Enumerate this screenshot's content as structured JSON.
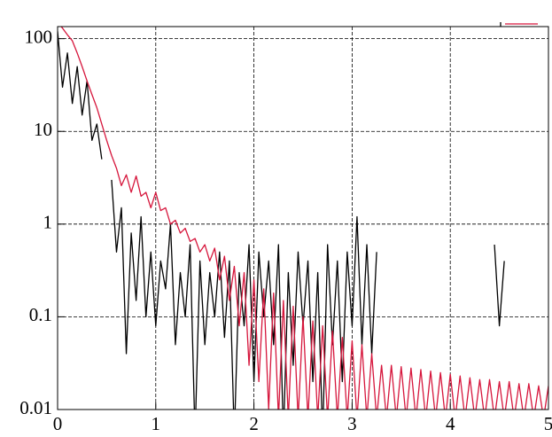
{
  "chart_data": {
    "type": "line",
    "yscale": "log",
    "grid": true,
    "legend": "top-right",
    "xlim": [
      0,
      5
    ],
    "xticks": [
      0,
      1,
      2,
      3,
      4,
      5
    ],
    "ylim": [
      0.01,
      135
    ],
    "yticks": [
      0.01,
      0.1,
      1,
      10,
      100
    ],
    "x": [
      0,
      0.05,
      0.1,
      0.15,
      0.2,
      0.25,
      0.3,
      0.35,
      0.4,
      0.45,
      0.5,
      0.55,
      0.6,
      0.65,
      0.7,
      0.75,
      0.8,
      0.85,
      0.9,
      0.95,
      1,
      1.05,
      1.1,
      1.15,
      1.2,
      1.25,
      1.3,
      1.35,
      1.4,
      1.45,
      1.5,
      1.55,
      1.6,
      1.65,
      1.7,
      1.75,
      1.8,
      1.85,
      1.9,
      1.95,
      2,
      2.05,
      2.1,
      2.15,
      2.2,
      2.25,
      2.3,
      2.35,
      2.4,
      2.45,
      2.5,
      2.55,
      2.6,
      2.65,
      2.7,
      2.75,
      2.8,
      2.85,
      2.9,
      2.95,
      3,
      3.05,
      3.1,
      3.15,
      3.2,
      3.25,
      3.3,
      3.35,
      3.4,
      3.45,
      3.5,
      3.55,
      3.6,
      3.65,
      3.7,
      3.75,
      3.8,
      3.85,
      3.9,
      3.95,
      4,
      4.05,
      4.1,
      4.15,
      4.2,
      4.25,
      4.3,
      4.35,
      4.4,
      4.45,
      4.5,
      4.55,
      4.6,
      4.65,
      4.7,
      4.75,
      4.8,
      4.85,
      4.9,
      4.95,
      5
    ],
    "series": [
      {
        "color": "#000000",
        "values": [
          120,
          30,
          70,
          20,
          50,
          15,
          35,
          8,
          12,
          5,
          null,
          3,
          0.5,
          1.5,
          0.04,
          0.8,
          0.15,
          1.2,
          0.1,
          0.5,
          0.08,
          0.4,
          0.2,
          1,
          0.05,
          0.3,
          0.1,
          0.6,
          0.005,
          0.4,
          0.05,
          0.3,
          0.1,
          0.5,
          0.06,
          0.4,
          0.005,
          0.3,
          0.08,
          0.6,
          0.02,
          0.5,
          0.1,
          0.4,
          0.05,
          0.6,
          0.005,
          0.3,
          0.03,
          0.5,
          0.08,
          0.4,
          0.02,
          0.3,
          0.005,
          0.6,
          0.05,
          0.4,
          0.02,
          0.5,
          0.08,
          1.2,
          0.05,
          0.6,
          0.04,
          0.5,
          null,
          null,
          null,
          null,
          null,
          null,
          null,
          null,
          null,
          null,
          null,
          null,
          null,
          null,
          null,
          null,
          null,
          null,
          null,
          null,
          null,
          null,
          null,
          0.6,
          0.08,
          0.4,
          null,
          null,
          null,
          null,
          null,
          null,
          null,
          null,
          null
        ]
      },
      {
        "color": "#d6163c",
        "values": [
          150,
          130,
          110,
          95,
          70,
          50,
          35,
          25,
          18,
          12,
          8,
          5.5,
          4,
          2.6,
          3.4,
          2.2,
          3.3,
          2,
          2.2,
          1.5,
          2.2,
          1.4,
          1.5,
          1,
          1.1,
          0.8,
          0.9,
          0.65,
          0.7,
          0.5,
          0.6,
          0.4,
          0.55,
          0.25,
          0.45,
          0.15,
          0.35,
          0.08,
          0.3,
          0.03,
          0.25,
          0.02,
          0.2,
          0.01,
          0.18,
          0.008,
          0.15,
          0.008,
          0.13,
          0.008,
          0.1,
          0.008,
          0.09,
          0.008,
          0.08,
          0.008,
          0.07,
          0.008,
          0.06,
          0.008,
          0.055,
          0.008,
          0.05,
          0.008,
          0.04,
          0.008,
          0.03,
          0.008,
          0.03,
          0.008,
          0.029,
          0.008,
          0.028,
          0.008,
          0.027,
          0.008,
          0.026,
          0.008,
          0.025,
          0.008,
          0.024,
          0.008,
          0.023,
          0.008,
          0.022,
          0.008,
          0.021,
          0.008,
          0.021,
          0.008,
          0.02,
          0.008,
          0.02,
          0.008,
          0.019,
          0.008,
          0.019,
          0.008,
          0.018,
          0.008,
          0.018
        ]
      }
    ]
  }
}
